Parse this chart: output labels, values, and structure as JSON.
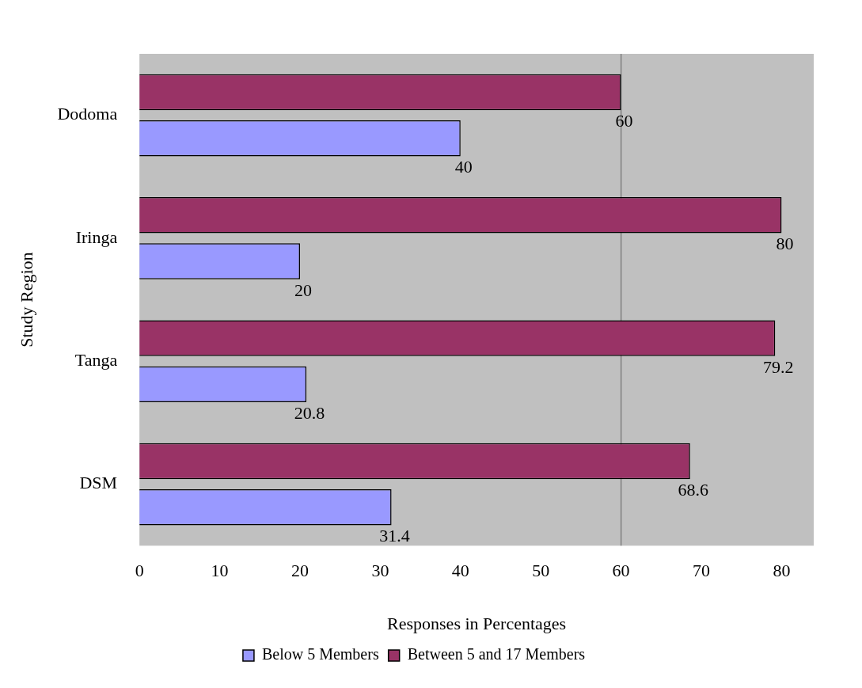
{
  "chart_data": {
    "type": "bar",
    "orientation": "horizontal",
    "xlabel": "Responses in Percentages",
    "ylabel": "Study Region",
    "categories": [
      "Dodoma",
      "Iringa",
      "Tanga",
      "DSM"
    ],
    "series": [
      {
        "name": "Below 5 Members",
        "color": "#9999ff",
        "values": [
          40,
          20,
          20.8,
          31.4
        ]
      },
      {
        "name": "Between 5 and 17 Members",
        "color": "#993366",
        "values": [
          60,
          80,
          79.2,
          68.6
        ]
      }
    ],
    "xlim": [
      0,
      84
    ],
    "xticks": [
      0,
      10,
      20,
      30,
      40,
      50,
      60,
      70,
      80
    ],
    "ref_lines": [
      {
        "axis": "x",
        "value": 60,
        "color": "#808080"
      }
    ],
    "data_labels": true,
    "legend": "bottom",
    "grid": false
  }
}
